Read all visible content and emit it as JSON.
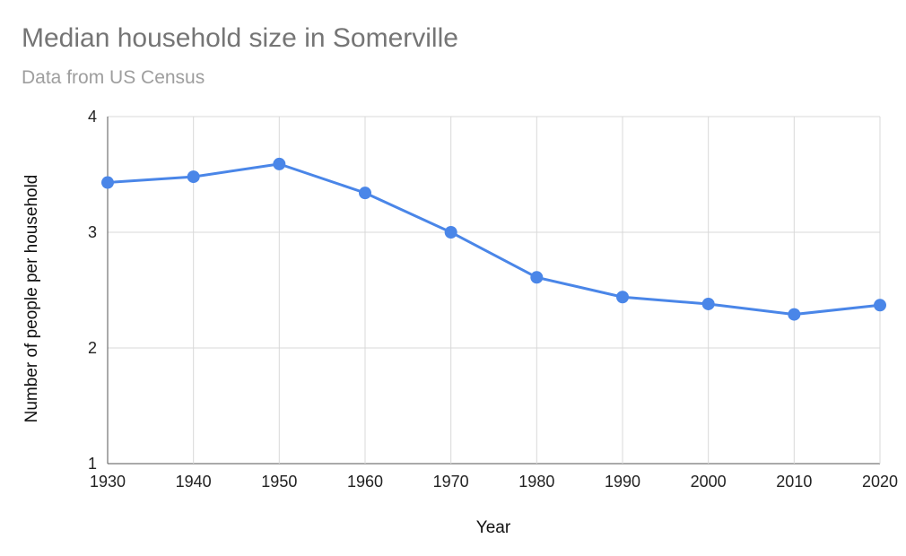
{
  "chart_data": {
    "type": "line",
    "title": "Median household size in Somerville",
    "subtitle": "Data from US Census",
    "xlabel": "Year",
    "ylabel": "Number of people per household",
    "x": [
      1930,
      1940,
      1950,
      1960,
      1970,
      1980,
      1990,
      2000,
      2010,
      2020
    ],
    "xticks": [
      "1930",
      "1940",
      "1950",
      "1960",
      "1970",
      "1980",
      "1990",
      "2000",
      "2010",
      "2020"
    ],
    "yticks": [
      "1",
      "2",
      "3",
      "4"
    ],
    "ylim": [
      1,
      4
    ],
    "xlim": [
      1930,
      2020
    ],
    "grid": true,
    "series": [
      {
        "values": [
          3.43,
          3.48,
          3.59,
          3.34,
          3.0,
          2.61,
          2.44,
          2.38,
          2.29,
          2.37
        ]
      }
    ],
    "colors": {
      "line": "#4a86e8",
      "grid": "#d9d9d9",
      "axis": "#555555"
    }
  }
}
